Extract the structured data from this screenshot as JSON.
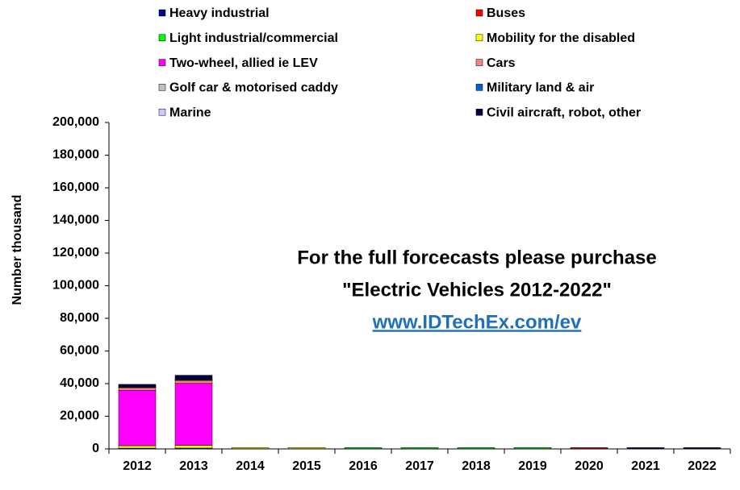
{
  "chart_data": {
    "type": "stacked-bar",
    "y_label": "Number thousand",
    "annotations": [
      "For the full forcecasts please purchase",
      "\"Electric Vehicles 2012-2022\"",
      "www.IDTechEx.com/ev"
    ],
    "categories": [
      "2012",
      "2013",
      "2014",
      "2015",
      "2016",
      "2017",
      "2018",
      "2019",
      "2020",
      "2021",
      "2022"
    ],
    "series": [
      {
        "name": "Heavy industrial",
        "color": "#000080",
        "values": [
          100,
          100,
          0,
          0,
          0,
          0,
          0,
          0,
          0,
          800,
          800
        ]
      },
      {
        "name": "Buses",
        "color": "#ff0000",
        "values": [
          50,
          60,
          0,
          0,
          0,
          0,
          0,
          0,
          800,
          0,
          0
        ]
      },
      {
        "name": "Light industrial/commercial",
        "color": "#00ff00",
        "values": [
          300,
          350,
          0,
          0,
          800,
          800,
          800,
          800,
          0,
          0,
          0
        ]
      },
      {
        "name": "Mobility for the disabled",
        "color": "#ffff00",
        "values": [
          1500,
          1600,
          800,
          800,
          0,
          0,
          0,
          0,
          0,
          0,
          0
        ]
      },
      {
        "name": "Two-wheel, allied ie LEV",
        "color": "#ff00ff",
        "values": [
          34000,
          38000,
          0,
          0,
          0,
          0,
          0,
          0,
          0,
          0,
          0
        ]
      },
      {
        "name": "Cars",
        "color": "#ff8080",
        "values": [
          1500,
          1800,
          0,
          0,
          0,
          0,
          0,
          0,
          0,
          0,
          0
        ]
      },
      {
        "name": "Golf car & motorised caddy",
        "color": "#c0c0c0",
        "values": [
          300,
          350,
          0,
          0,
          0,
          0,
          0,
          0,
          0,
          0,
          0
        ]
      },
      {
        "name": "Military land & air",
        "color": "#0066cc",
        "values": [
          200,
          250,
          0,
          0,
          0,
          0,
          0,
          0,
          0,
          0,
          0
        ]
      },
      {
        "name": "Marine",
        "color": "#ccccff",
        "values": [
          100,
          120,
          0,
          0,
          0,
          0,
          0,
          0,
          0,
          0,
          0
        ]
      },
      {
        "name": "Civil aircraft, robot, other",
        "color": "#000040",
        "values": [
          1500,
          2500,
          0,
          0,
          0,
          0,
          0,
          0,
          0,
          0,
          0
        ]
      }
    ],
    "ylim": [
      0,
      200000
    ],
    "yticks": [
      0,
      {
        "value": 20000,
        "label": "20,000"
      },
      {
        "value": 40000,
        "label": "40,000"
      },
      {
        "value": 60000,
        "label": "60,000"
      },
      {
        "value": 80000,
        "label": "80,000"
      },
      {
        "value": 100000,
        "label": "100,000"
      },
      {
        "value": 120000,
        "label": "120,000"
      },
      {
        "value": 140000,
        "label": "140,000"
      },
      {
        "value": 160000,
        "label": "160,000"
      },
      {
        "value": 180000,
        "label": "180,000"
      },
      {
        "value": 200000,
        "label": "200,000"
      }
    ],
    "grid": false
  }
}
